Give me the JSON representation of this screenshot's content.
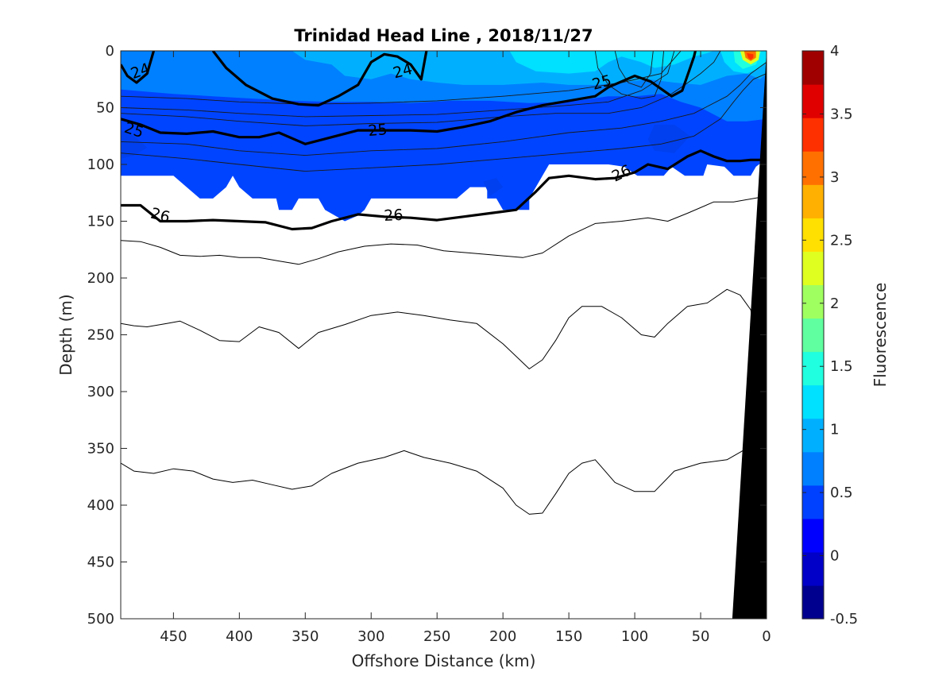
{
  "chart_data": {
    "type": "contour",
    "title": "Trinidad Head Line , 2018/11/27",
    "xlabel": "Offshore Distance (km)",
    "ylabel": "Depth (m)",
    "xlim": [
      490,
      0
    ],
    "x_reversed": true,
    "ylim": [
      0,
      500
    ],
    "y_reversed": true,
    "x_ticks": [
      "450",
      "400",
      "350",
      "300",
      "250",
      "200",
      "150",
      "100",
      "50",
      "0"
    ],
    "x_tick_values": [
      450,
      400,
      350,
      300,
      250,
      200,
      150,
      100,
      50,
      0
    ],
    "y_ticks": [
      "0",
      "50",
      "100",
      "150",
      "200",
      "250",
      "300",
      "350",
      "400",
      "450",
      "500"
    ],
    "y_tick_values": [
      0,
      50,
      100,
      150,
      200,
      250,
      300,
      350,
      400,
      450,
      500
    ],
    "colorbar": {
      "label": "Fluorescence",
      "min": -0.5,
      "max": 4,
      "tick_labels": [
        "4",
        "3.5",
        "3",
        "2.5",
        "2",
        "1.5",
        "1",
        "0.5",
        "0",
        "-0.5"
      ],
      "tick_values": [
        4,
        3.5,
        3,
        2.5,
        2,
        1.5,
        1,
        0.5,
        0,
        -0.5
      ],
      "colors": [
        "#00008f",
        "#0000c8",
        "#0000ff",
        "#0040ff",
        "#0080ff",
        "#00b0ff",
        "#00e0ff",
        "#20ffdf",
        "#60ff9f",
        "#a0ff60",
        "#dfff20",
        "#ffe000",
        "#ffb000",
        "#ff7000",
        "#ff3000",
        "#e00000",
        "#a00000"
      ]
    },
    "fluorescence_field": {
      "description_levels": "filled contours of fluorescence (about 0.0 to 1.0, peak near 3.5 at 12 km nearshore surface)",
      "bottom_of_data_depth_range": [
        110,
        150
      ],
      "peak_value": 3.5,
      "peak_location": {
        "distance_km": 12,
        "depth_m": 5
      }
    },
    "density_contours": {
      "labelled_levels": [
        "24",
        "25",
        "26"
      ],
      "series": [
        {
          "name": "24",
          "x": [
            490,
            485,
            478,
            470,
            465
          ],
          "y": [
            12,
            22,
            28,
            20,
            0
          ]
        },
        {
          "name": "24",
          "x": [
            420,
            410,
            395,
            375,
            355,
            340,
            325,
            310,
            300,
            290,
            280,
            270,
            262,
            258
          ],
          "y": [
            0,
            15,
            30,
            42,
            47,
            48,
            40,
            30,
            10,
            3,
            5,
            12,
            25,
            0
          ]
        },
        {
          "name": "25",
          "x": [
            490,
            475,
            460,
            440,
            420,
            400,
            385,
            370,
            350,
            330,
            310,
            290,
            270,
            250,
            230,
            210,
            190,
            170,
            150,
            130,
            120,
            100,
            88,
            72,
            64,
            58,
            55,
            54
          ],
          "y": [
            60,
            65,
            72,
            73,
            71,
            76,
            76,
            72,
            82,
            76,
            70,
            70,
            70,
            71,
            67,
            62,
            54,
            48,
            44,
            40,
            32,
            22,
            27,
            40,
            35,
            15,
            5,
            0
          ]
        },
        {
          "name": "26",
          "x": [
            490,
            475,
            460,
            440,
            420,
            400,
            380,
            360,
            345,
            330,
            310,
            290,
            270,
            250,
            230,
            210,
            190,
            175,
            165,
            150,
            130,
            115,
            100,
            90,
            75,
            60,
            50,
            40,
            30,
            20,
            12,
            0
          ],
          "y": [
            136,
            136,
            150,
            150,
            149,
            150,
            151,
            157,
            156,
            150,
            144,
            146,
            147,
            149,
            146,
            143,
            140,
            124,
            112,
            110,
            113,
            112,
            107,
            100,
            104,
            93,
            88,
            93,
            97,
            97,
            96,
            96
          ]
        },
        {
          "name": "",
          "x": [
            490,
            475,
            460,
            445,
            430,
            415,
            400,
            385,
            370,
            355,
            340,
            325,
            305,
            285,
            265,
            245,
            225,
            205,
            185,
            170,
            150,
            130,
            110,
            90,
            75,
            60,
            40,
            25,
            0
          ],
          "y": [
            167,
            168,
            173,
            180,
            181,
            180,
            182,
            182,
            185,
            188,
            183,
            177,
            172,
            170,
            171,
            176,
            178,
            180,
            182,
            178,
            163,
            152,
            150,
            147,
            150,
            143,
            133,
            133,
            128
          ]
        },
        {
          "name": "",
          "x": [
            490,
            480,
            470,
            455,
            445,
            430,
            415,
            400,
            385,
            370,
            355,
            340,
            320,
            300,
            280,
            260,
            240,
            220,
            200,
            180,
            170,
            160,
            150,
            140,
            125,
            110,
            95,
            85,
            75,
            60,
            45,
            30,
            20,
            12,
            0
          ],
          "y": [
            240,
            242,
            243,
            240,
            238,
            246,
            255,
            256,
            243,
            248,
            262,
            248,
            241,
            233,
            230,
            233,
            237,
            240,
            258,
            280,
            272,
            255,
            235,
            225,
            225,
            235,
            250,
            252,
            240,
            225,
            222,
            210,
            215,
            228,
            300
          ]
        },
        {
          "name": "",
          "x": [
            490,
            480,
            465,
            450,
            435,
            420,
            405,
            390,
            375,
            360,
            345,
            330,
            310,
            290,
            275,
            260,
            240,
            220,
            200,
            190,
            180,
            170,
            160,
            150,
            140,
            130,
            115,
            100,
            85,
            70,
            50,
            30,
            18,
            0
          ],
          "y": [
            363,
            370,
            372,
            368,
            370,
            377,
            380,
            378,
            382,
            386,
            383,
            372,
            363,
            358,
            352,
            358,
            363,
            370,
            385,
            400,
            408,
            407,
            390,
            372,
            363,
            360,
            380,
            388,
            388,
            370,
            363,
            360,
            352,
            350
          ]
        }
      ]
    },
    "bathymetry": {
      "fill": "#000000",
      "top_x": 0,
      "top_depth": 0,
      "bottom_x_range": [
        26,
        0
      ],
      "bottom_depth": 500
    }
  }
}
